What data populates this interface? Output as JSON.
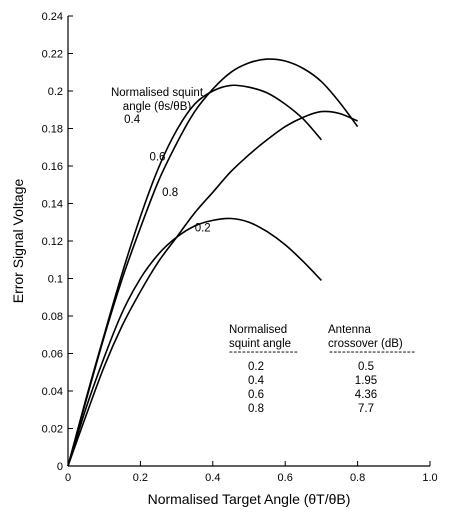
{
  "chart_data": {
    "type": "line",
    "title": "",
    "xlabel": "Normalised Target Angle (θT/θB)",
    "ylabel": "Error Signal Voltage",
    "xlim": [
      0,
      1.0
    ],
    "ylim": [
      0,
      0.24
    ],
    "x_ticks": [
      "0",
      "0.2",
      "0.4",
      "0.6",
      "0.8",
      "1.0"
    ],
    "y_ticks": [
      "0",
      "0.02",
      "0.04",
      "0.06",
      "0.08",
      "0.1",
      "0.12",
      "0.14",
      "0.16",
      "0.18",
      "0.2",
      "0.22",
      "0.24"
    ],
    "grid": false,
    "annotation": {
      "line1": "Normalised squint",
      "line2": "angle (θs/θB)"
    },
    "series": [
      {
        "name": "0.2",
        "points": [
          [
            0,
            0
          ],
          [
            0.05,
            0.031
          ],
          [
            0.1,
            0.058
          ],
          [
            0.15,
            0.082
          ],
          [
            0.2,
            0.1
          ],
          [
            0.25,
            0.113
          ],
          [
            0.3,
            0.122
          ],
          [
            0.35,
            0.128
          ],
          [
            0.4,
            0.131
          ],
          [
            0.45,
            0.132
          ],
          [
            0.5,
            0.13
          ],
          [
            0.55,
            0.125
          ],
          [
            0.6,
            0.118
          ],
          [
            0.65,
            0.109
          ],
          [
            0.7,
            0.099
          ]
        ]
      },
      {
        "name": "0.4",
        "points": [
          [
            0,
            0
          ],
          [
            0.05,
            0.036
          ],
          [
            0.1,
            0.07
          ],
          [
            0.15,
            0.103
          ],
          [
            0.2,
            0.133
          ],
          [
            0.25,
            0.159
          ],
          [
            0.3,
            0.179
          ],
          [
            0.35,
            0.193
          ],
          [
            0.4,
            0.2
          ],
          [
            0.45,
            0.203
          ],
          [
            0.5,
            0.202
          ],
          [
            0.55,
            0.199
          ],
          [
            0.6,
            0.193
          ],
          [
            0.65,
            0.185
          ],
          [
            0.7,
            0.174
          ]
        ]
      },
      {
        "name": "0.6",
        "points": [
          [
            0,
            0
          ],
          [
            0.05,
            0.035
          ],
          [
            0.1,
            0.069
          ],
          [
            0.15,
            0.1
          ],
          [
            0.2,
            0.127
          ],
          [
            0.25,
            0.152
          ],
          [
            0.3,
            0.172
          ],
          [
            0.35,
            0.189
          ],
          [
            0.4,
            0.201
          ],
          [
            0.45,
            0.21
          ],
          [
            0.5,
            0.215
          ],
          [
            0.55,
            0.217
          ],
          [
            0.6,
            0.216
          ],
          [
            0.65,
            0.212
          ],
          [
            0.7,
            0.205
          ],
          [
            0.75,
            0.194
          ],
          [
            0.8,
            0.181
          ]
        ]
      },
      {
        "name": "0.8",
        "points": [
          [
            0,
            0
          ],
          [
            0.05,
            0.027
          ],
          [
            0.1,
            0.053
          ],
          [
            0.15,
            0.075
          ],
          [
            0.2,
            0.093
          ],
          [
            0.25,
            0.109
          ],
          [
            0.3,
            0.122
          ],
          [
            0.35,
            0.135
          ],
          [
            0.4,
            0.146
          ],
          [
            0.45,
            0.157
          ],
          [
            0.5,
            0.166
          ],
          [
            0.55,
            0.174
          ],
          [
            0.6,
            0.181
          ],
          [
            0.65,
            0.186
          ],
          [
            0.7,
            0.189
          ],
          [
            0.75,
            0.188
          ],
          [
            0.8,
            0.184
          ]
        ]
      }
    ],
    "curve_labels": [
      {
        "text": "0.4",
        "x": 0.155,
        "y": 0.183
      },
      {
        "text": "0.6",
        "x": 0.225,
        "y": 0.163
      },
      {
        "text": "0.8",
        "x": 0.26,
        "y": 0.144
      },
      {
        "text": "0.2",
        "x": 0.35,
        "y": 0.125
      }
    ],
    "table": {
      "header1": [
        "Normalised",
        "squint angle"
      ],
      "header2": [
        "Antenna",
        "crossover (dB)"
      ],
      "dashes1": "----------------",
      "dashes2": "--------------------",
      "rows": [
        [
          "0.2",
          "0.5"
        ],
        [
          "0.4",
          "1.95"
        ],
        [
          "0.6",
          "4.36"
        ],
        [
          "0.8",
          "7.7"
        ]
      ]
    }
  }
}
